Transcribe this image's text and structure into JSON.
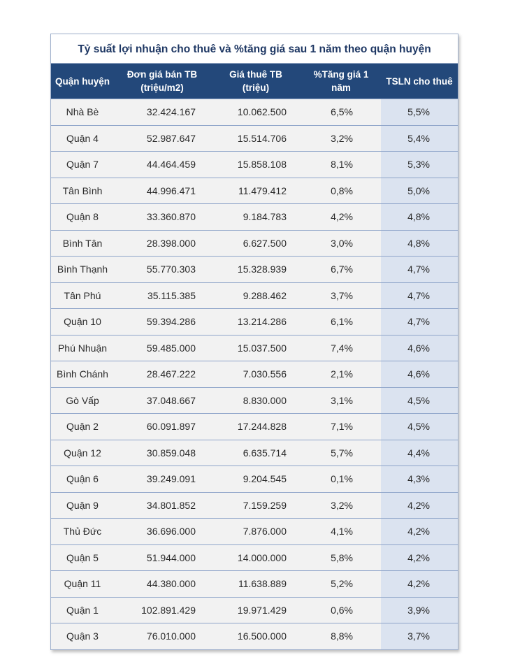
{
  "title": "Tỷ suất lợi nhuận  cho thuê và %tăng giá sau 1 năm theo quận huyện",
  "headers": {
    "district": "Quận huyện",
    "sale_price_l1": "Đơn giá bán TB",
    "sale_price_l2": "(triệu/m2)",
    "rent_l1": "Giá thuê TB",
    "rent_l2": "(triệu)",
    "growth_l1": "%Tăng giá 1",
    "growth_l2": "năm",
    "yield": "TSLN cho thuê"
  },
  "colors": {
    "header_bg": "#23487a",
    "highlight_column": "#dbe3f0",
    "row_bg": "#f2f2f2",
    "title_text": "#1f3864"
  },
  "rows": [
    [
      "Nhà Bè",
      "32.424.167",
      "10.062.500",
      "6,5%",
      "5,5%"
    ],
    [
      "Quận 4",
      "52.987.647",
      "15.514.706",
      "3,2%",
      "5,4%"
    ],
    [
      "Quận 7",
      "44.464.459",
      "15.858.108",
      "8,1%",
      "5,3%"
    ],
    [
      "Tân Bình",
      "44.996.471",
      "11.479.412",
      "0,8%",
      "5,0%"
    ],
    [
      "Quận 8",
      "33.360.870",
      "9.184.783",
      "4,2%",
      "4,8%"
    ],
    [
      "Bình Tân",
      "28.398.000",
      "6.627.500",
      "3,0%",
      "4,8%"
    ],
    [
      "Bình Thạnh",
      "55.770.303",
      "15.328.939",
      "6,7%",
      "4,7%"
    ],
    [
      "Tân Phú",
      "35.115.385",
      "9.288.462",
      "3,7%",
      "4,7%"
    ],
    [
      "Quận 10",
      "59.394.286",
      "13.214.286",
      "6,1%",
      "4,7%"
    ],
    [
      "Phú Nhuận",
      "59.485.000",
      "15.037.500",
      "7,4%",
      "4,6%"
    ],
    [
      "Bình Chánh",
      "28.467.222",
      "7.030.556",
      "2,1%",
      "4,6%"
    ],
    [
      "Gò Vấp",
      "37.048.667",
      "8.830.000",
      "3,1%",
      "4,5%"
    ],
    [
      "Quận 2",
      "60.091.897",
      "17.244.828",
      "7,1%",
      "4,5%"
    ],
    [
      "Quận 12",
      "30.859.048",
      "6.635.714",
      "5,7%",
      "4,4%"
    ],
    [
      "Quận 6",
      "39.249.091",
      "9.204.545",
      "0,1%",
      "4,3%"
    ],
    [
      "Quận 9",
      "34.801.852",
      "7.159.259",
      "3,2%",
      "4,2%"
    ],
    [
      "Thủ Đức",
      "36.696.000",
      "7.876.000",
      "4,1%",
      "4,2%"
    ],
    [
      "Quận 5",
      "51.944.000",
      "14.000.000",
      "5,8%",
      "4,2%"
    ],
    [
      "Quận 11",
      "44.380.000",
      "11.638.889",
      "5,2%",
      "4,2%"
    ],
    [
      "Quận 1",
      "102.891.429",
      "19.971.429",
      "0,6%",
      "3,9%"
    ],
    [
      "Quận 3",
      "76.010.000",
      "16.500.000",
      "8,8%",
      "3,7%"
    ]
  ]
}
